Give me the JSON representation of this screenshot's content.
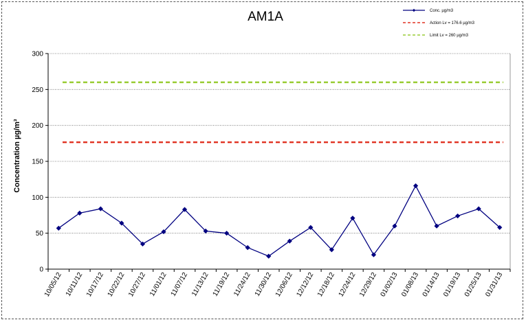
{
  "chart_data": {
    "type": "line",
    "title": "AM1A",
    "xlabel": "",
    "ylabel": "Concentration  µg/m³",
    "ylim": [
      0,
      300
    ],
    "yticks": [
      0,
      50,
      100,
      150,
      200,
      250,
      300
    ],
    "grid": "horizontal-dotted",
    "legend_position": "top-right",
    "categories": [
      "10/05/12",
      "10/11/12",
      "10/17/12",
      "10/22/12",
      "10/27/12",
      "11/01/12",
      "11/07/12",
      "11/13/12",
      "11/19/12",
      "11/24/12",
      "11/30/12",
      "12/06/12",
      "12/12/12",
      "12/18/12",
      "12/24/12",
      "12/29/12",
      "01/02/13",
      "01/08/13",
      "01/14/13",
      "01/19/13",
      "01/25/13",
      "01/31/13"
    ],
    "series": [
      {
        "name": "Conc. µg/m3",
        "color": "#000080",
        "style": "solid-diamond",
        "values": [
          57,
          78,
          84,
          64,
          35,
          52,
          83,
          53,
          50,
          30,
          18,
          39,
          58,
          27,
          71,
          20,
          60,
          116,
          60,
          74,
          84,
          58
        ]
      },
      {
        "name": "Action Lv = 176.6 µg/m3",
        "color": "#e03020",
        "style": "dashed",
        "constant": 176.6
      },
      {
        "name": "Limit Lv = 260 µg/m3",
        "color": "#99cc33",
        "style": "dashed",
        "constant": 260
      }
    ]
  }
}
